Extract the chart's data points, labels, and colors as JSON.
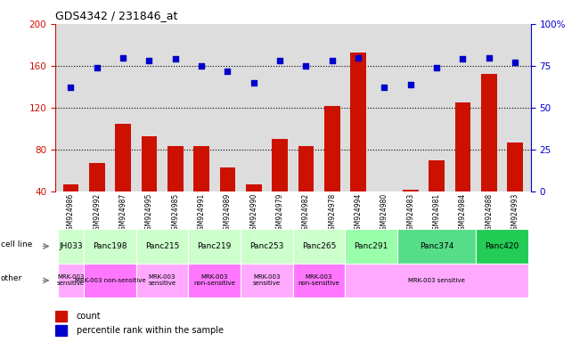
{
  "title": "GDS4342 / 231846_at",
  "samples": [
    "GSM924986",
    "GSM924992",
    "GSM924987",
    "GSM924995",
    "GSM924985",
    "GSM924991",
    "GSM924989",
    "GSM924990",
    "GSM924979",
    "GSM924982",
    "GSM924978",
    "GSM924994",
    "GSM924980",
    "GSM924983",
    "GSM924981",
    "GSM924984",
    "GSM924988",
    "GSM924993"
  ],
  "counts": [
    47,
    67,
    105,
    93,
    83,
    83,
    63,
    47,
    90,
    83,
    122,
    173,
    40,
    42,
    70,
    125,
    152,
    87
  ],
  "percentile_ranks": [
    62,
    74,
    80,
    78,
    79,
    75,
    72,
    65,
    78,
    75,
    78,
    80,
    62,
    64,
    74,
    79,
    80,
    77
  ],
  "cell_lines": [
    {
      "name": "JH033",
      "start": 0,
      "end": 1,
      "color": "#ccffcc"
    },
    {
      "name": "Panc198",
      "start": 1,
      "end": 3,
      "color": "#ccffcc"
    },
    {
      "name": "Panc215",
      "start": 3,
      "end": 5,
      "color": "#ccffcc"
    },
    {
      "name": "Panc219",
      "start": 5,
      "end": 7,
      "color": "#ccffcc"
    },
    {
      "name": "Panc253",
      "start": 7,
      "end": 9,
      "color": "#ccffcc"
    },
    {
      "name": "Panc265",
      "start": 9,
      "end": 11,
      "color": "#ccffcc"
    },
    {
      "name": "Panc291",
      "start": 11,
      "end": 13,
      "color": "#99ffaa"
    },
    {
      "name": "Panc374",
      "start": 13,
      "end": 16,
      "color": "#55dd88"
    },
    {
      "name": "Panc420",
      "start": 16,
      "end": 18,
      "color": "#22cc55"
    }
  ],
  "other_labels": [
    {
      "label": "MRK-003\nsensitive",
      "start": 0,
      "end": 1,
      "color": "#ffaaff"
    },
    {
      "label": "MRK-003 non-sensitive",
      "start": 1,
      "end": 3,
      "color": "#ff77ff"
    },
    {
      "label": "MRK-003\nsensitive",
      "start": 3,
      "end": 5,
      "color": "#ffaaff"
    },
    {
      "label": "MRK-003\nnon-sensitive",
      "start": 5,
      "end": 7,
      "color": "#ff77ff"
    },
    {
      "label": "MRK-003\nsensitive",
      "start": 7,
      "end": 9,
      "color": "#ffaaff"
    },
    {
      "label": "MRK-003\nnon-sensitive",
      "start": 9,
      "end": 11,
      "color": "#ff77ff"
    },
    {
      "label": "MRK-003 sensitive",
      "start": 11,
      "end": 18,
      "color": "#ffaaff"
    }
  ],
  "ylim_left": [
    40,
    200
  ],
  "ylim_right": [
    0,
    100
  ],
  "yticks_left": [
    40,
    80,
    120,
    160,
    200
  ],
  "yticks_right": [
    0,
    25,
    50,
    75,
    100
  ],
  "bar_color": "#cc1100",
  "scatter_color": "#0000cc",
  "bg_color": "#dddddd"
}
